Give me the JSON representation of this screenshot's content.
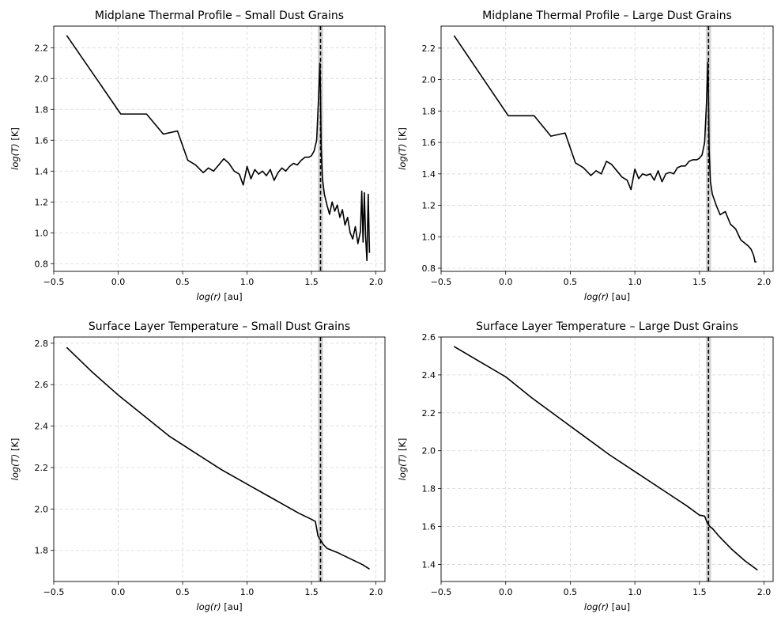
{
  "chart_data": [
    {
      "type": "line",
      "title": "Midplane Thermal Profile – Small Dust Grains",
      "xlabel": "log(r) [au]",
      "ylabel": "log(T) [K]",
      "xlim": [
        -0.5,
        2.07
      ],
      "ylim": [
        0.75,
        2.34
      ],
      "xticks": [
        -0.5,
        0.0,
        0.5,
        1.0,
        1.5,
        2.0
      ],
      "xtick_labels": [
        "−0.5",
        "0.0",
        "0.5",
        "1.0",
        "1.5",
        "2.0"
      ],
      "yticks": [
        0.8,
        1.0,
        1.2,
        1.4,
        1.6,
        1.8,
        2.0,
        2.2
      ],
      "ytick_labels": [
        "0.8",
        "1.0",
        "1.2",
        "1.4",
        "1.6",
        "1.8",
        "2.0",
        "2.2"
      ],
      "grid": true,
      "vline": 1.57,
      "band": [
        1.55,
        1.59
      ],
      "series": [
        {
          "x": [
            -0.4,
            0.02,
            0.22,
            0.35,
            0.46,
            0.54,
            0.6,
            0.66,
            0.7,
            0.74,
            0.78,
            0.82,
            0.86,
            0.9,
            0.94,
            0.97,
            1.0,
            1.03,
            1.06,
            1.09,
            1.12,
            1.15,
            1.18,
            1.21,
            1.24,
            1.27,
            1.3,
            1.33,
            1.36,
            1.39,
            1.42,
            1.45,
            1.48,
            1.5,
            1.52,
            1.54,
            1.555,
            1.565,
            1.57,
            1.575,
            1.585,
            1.6,
            1.62,
            1.64,
            1.66,
            1.68,
            1.7,
            1.72,
            1.74,
            1.76,
            1.78,
            1.8,
            1.82,
            1.84,
            1.86,
            1.88,
            1.89,
            1.9,
            1.91,
            1.92,
            1.93,
            1.94,
            1.95
          ],
          "y": [
            2.28,
            1.77,
            1.77,
            1.64,
            1.66,
            1.47,
            1.44,
            1.39,
            1.42,
            1.4,
            1.44,
            1.48,
            1.45,
            1.4,
            1.38,
            1.31,
            1.43,
            1.35,
            1.41,
            1.38,
            1.4,
            1.37,
            1.41,
            1.34,
            1.39,
            1.42,
            1.4,
            1.43,
            1.45,
            1.44,
            1.47,
            1.49,
            1.49,
            1.5,
            1.53,
            1.6,
            1.88,
            2.1,
            1.9,
            1.55,
            1.35,
            1.25,
            1.18,
            1.12,
            1.2,
            1.14,
            1.18,
            1.1,
            1.15,
            1.05,
            1.1,
            1.0,
            0.96,
            1.04,
            0.93,
            1.01,
            1.27,
            0.94,
            1.26,
            0.97,
            0.82,
            1.25,
            0.87
          ]
        }
      ]
    },
    {
      "type": "line",
      "title": "Midplane Thermal Profile – Large Dust Grains",
      "xlabel": "log(r) [au]",
      "ylabel": "log(T) [K]",
      "xlim": [
        -0.5,
        2.07
      ],
      "ylim": [
        0.78,
        2.34
      ],
      "xticks": [
        -0.5,
        0.0,
        0.5,
        1.0,
        1.5,
        2.0
      ],
      "xtick_labels": [
        "−0.5",
        "0.0",
        "0.5",
        "1.0",
        "1.5",
        "2.0"
      ],
      "yticks": [
        0.8,
        1.0,
        1.2,
        1.4,
        1.6,
        1.8,
        2.0,
        2.2
      ],
      "ytick_labels": [
        "0.8",
        "1.0",
        "1.2",
        "1.4",
        "1.6",
        "1.8",
        "2.0",
        "2.2"
      ],
      "grid": true,
      "vline": 1.57,
      "band": [
        1.55,
        1.59
      ],
      "series": [
        {
          "x": [
            -0.4,
            0.02,
            0.22,
            0.35,
            0.46,
            0.54,
            0.6,
            0.66,
            0.7,
            0.74,
            0.78,
            0.82,
            0.86,
            0.9,
            0.94,
            0.97,
            1.0,
            1.03,
            1.06,
            1.09,
            1.12,
            1.15,
            1.18,
            1.21,
            1.24,
            1.27,
            1.3,
            1.33,
            1.36,
            1.39,
            1.42,
            1.45,
            1.48,
            1.5,
            1.52,
            1.54,
            1.555,
            1.565,
            1.57,
            1.575,
            1.585,
            1.6,
            1.63,
            1.66,
            1.7,
            1.74,
            1.78,
            1.82,
            1.85,
            1.88,
            1.9,
            1.92,
            1.93,
            1.94
          ],
          "y": [
            2.28,
            1.77,
            1.77,
            1.64,
            1.66,
            1.47,
            1.44,
            1.39,
            1.42,
            1.4,
            1.48,
            1.46,
            1.42,
            1.38,
            1.36,
            1.3,
            1.43,
            1.37,
            1.4,
            1.39,
            1.4,
            1.36,
            1.42,
            1.35,
            1.4,
            1.41,
            1.4,
            1.44,
            1.45,
            1.45,
            1.48,
            1.49,
            1.49,
            1.5,
            1.52,
            1.6,
            1.86,
            2.11,
            1.88,
            1.55,
            1.35,
            1.27,
            1.2,
            1.14,
            1.16,
            1.08,
            1.05,
            0.98,
            0.96,
            0.94,
            0.92,
            0.88,
            0.84,
            0.84
          ]
        }
      ]
    },
    {
      "type": "line",
      "title": "Surface Layer Temperature – Small Dust Grains",
      "xlabel": "log(r) [au]",
      "ylabel": "log(T) [K]",
      "xlim": [
        -0.5,
        2.07
      ],
      "ylim": [
        1.65,
        2.83
      ],
      "xticks": [
        -0.5,
        0.0,
        0.5,
        1.0,
        1.5,
        2.0
      ],
      "xtick_labels": [
        "−0.5",
        "0.0",
        "0.5",
        "1.0",
        "1.5",
        "2.0"
      ],
      "yticks": [
        1.8,
        2.0,
        2.2,
        2.4,
        2.6,
        2.8
      ],
      "ytick_labels": [
        "1.8",
        "2.0",
        "2.2",
        "2.4",
        "2.6",
        "2.8"
      ],
      "grid": true,
      "vline": 1.57,
      "band": [
        1.55,
        1.59
      ],
      "series": [
        {
          "x": [
            -0.4,
            -0.2,
            0.0,
            0.2,
            0.4,
            0.6,
            0.8,
            1.0,
            1.2,
            1.4,
            1.5,
            1.53,
            1.55,
            1.57,
            1.59,
            1.62,
            1.7,
            1.8,
            1.9,
            1.95
          ],
          "y": [
            2.78,
            2.66,
            2.55,
            2.45,
            2.35,
            2.27,
            2.19,
            2.12,
            2.05,
            1.98,
            1.95,
            1.94,
            1.87,
            1.85,
            1.83,
            1.81,
            1.79,
            1.76,
            1.73,
            1.71
          ]
        }
      ]
    },
    {
      "type": "line",
      "title": "Surface Layer Temperature – Large Dust Grains",
      "xlabel": "log(r) [au]",
      "ylabel": "log(T) [K]",
      "xlim": [
        -0.5,
        2.07
      ],
      "ylim": [
        1.31,
        2.6
      ],
      "xticks": [
        -0.5,
        0.0,
        0.5,
        1.0,
        1.5,
        2.0
      ],
      "xtick_labels": [
        "−0.5",
        "0.0",
        "0.5",
        "1.0",
        "1.5",
        "2.0"
      ],
      "yticks": [
        1.4,
        1.6,
        1.8,
        2.0,
        2.2,
        2.4,
        2.6
      ],
      "ytick_labels": [
        "1.4",
        "1.6",
        "1.8",
        "2.0",
        "2.2",
        "2.4",
        "2.6"
      ],
      "grid": true,
      "vline": 1.57,
      "band": [
        1.55,
        1.59
      ],
      "series": [
        {
          "x": [
            -0.4,
            -0.2,
            0.0,
            0.2,
            0.4,
            0.6,
            0.8,
            1.0,
            1.2,
            1.4,
            1.5,
            1.54,
            1.56,
            1.58,
            1.6,
            1.65,
            1.75,
            1.85,
            1.95
          ],
          "y": [
            2.55,
            2.47,
            2.39,
            2.28,
            2.18,
            2.08,
            1.98,
            1.89,
            1.8,
            1.71,
            1.66,
            1.655,
            1.62,
            1.6,
            1.59,
            1.55,
            1.48,
            1.42,
            1.37
          ]
        }
      ]
    }
  ]
}
